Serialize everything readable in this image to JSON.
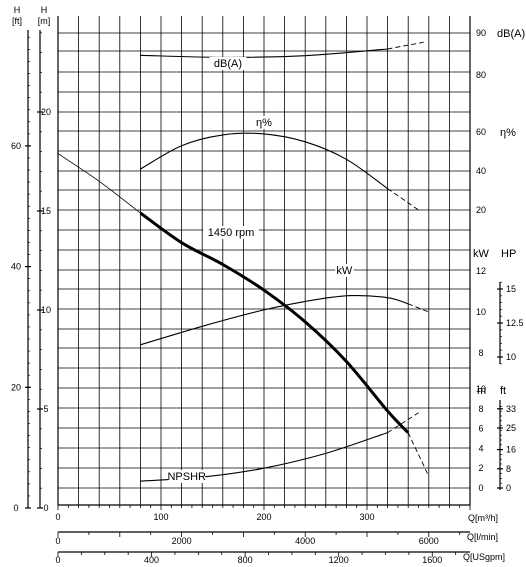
{
  "chart_data": {
    "type": "line",
    "x_axes": [
      {
        "unit": "Q[m³/h]",
        "ticks": [
          0,
          100,
          200,
          300
        ]
      },
      {
        "unit": "Q[l/min]",
        "ticks": [
          0,
          2000,
          4000,
          6000
        ]
      },
      {
        "unit": "Q[USgpm]",
        "ticks": [
          0,
          400,
          800,
          1200,
          1600
        ]
      }
    ],
    "left_axes": [
      {
        "unit_top": "H",
        "unit_bottom": "[ft]",
        "ticks": [
          0,
          20,
          40,
          60
        ]
      },
      {
        "unit_top": "H",
        "unit_bottom": "[m]",
        "ticks": [
          0,
          5,
          10,
          15,
          20
        ]
      }
    ],
    "right_axes": {
      "db": {
        "unit": "dB(A)",
        "ticks": [
          80,
          90
        ]
      },
      "eta": {
        "unit": "η%",
        "ticks": [
          20,
          40,
          60
        ]
      },
      "kw": {
        "unit": "kW",
        "ticks": [
          8,
          10,
          12
        ]
      },
      "hp": {
        "unit": "HP",
        "ticks": [
          10,
          12.5,
          15
        ]
      },
      "m": {
        "unit": "m",
        "ticks": [
          0,
          2,
          4,
          6,
          8,
          10
        ]
      },
      "ft": {
        "unit": "ft",
        "ticks": [
          0,
          8,
          16,
          25,
          33
        ]
      }
    },
    "series": [
      {
        "name": "1450 rpm",
        "x": [
          0,
          40,
          80,
          120,
          160,
          200,
          240,
          280,
          320,
          340
        ],
        "y": [
          17.9,
          16.5,
          14.9,
          13.4,
          12.3,
          11.0,
          9.4,
          7.4,
          4.9,
          3.8
        ],
        "x_ext": [
          340,
          360
        ],
        "y_ext": [
          3.8,
          1.6
        ]
      },
      {
        "name": "η%",
        "x": [
          80,
          120,
          160,
          200,
          240,
          280,
          320
        ],
        "y": [
          41,
          53,
          58.5,
          59,
          55,
          46,
          31
        ],
        "x_ext": [
          320,
          350
        ],
        "y_ext": [
          31,
          20
        ]
      },
      {
        "name": "kW",
        "x": [
          80,
          140,
          200,
          250,
          285,
          320,
          340
        ],
        "y": [
          8.4,
          9.3,
          10.1,
          10.6,
          10.8,
          10.7,
          10.4
        ],
        "x_ext": [
          340,
          360
        ],
        "y_ext": [
          10.4,
          10.0
        ]
      },
      {
        "name": "dB(A)",
        "x": [
          80,
          160,
          240,
          320
        ],
        "y": [
          84.7,
          84.2,
          84.6,
          86.2
        ],
        "x_ext": [
          320,
          355
        ],
        "y_ext": [
          86.2,
          87.8
        ]
      },
      {
        "name": "NPSHR",
        "x": [
          80,
          140,
          200,
          260,
          320
        ],
        "y": [
          0.7,
          1.1,
          2.0,
          3.5,
          5.6
        ],
        "x_ext": [
          320,
          350
        ],
        "y_ext": [
          5.6,
          7.6
        ]
      }
    ],
    "grid": true
  }
}
